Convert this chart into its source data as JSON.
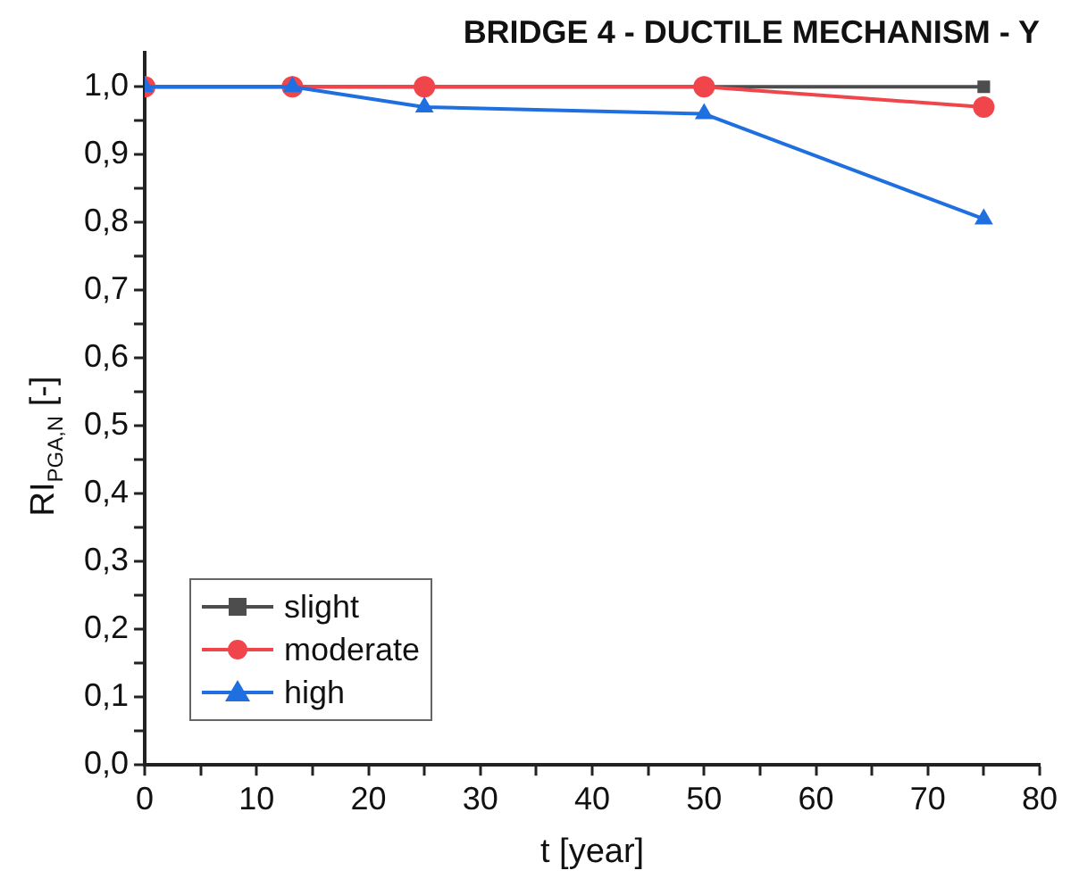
{
  "chart_data": {
    "type": "line",
    "title": "BRIDGE 4 - DUCTILE MECHANISM - Y",
    "xlabel": "t [year]",
    "ylabel": "RI$_{PGA,N}$ [-]",
    "x": [
      0,
      13.2,
      25,
      50,
      75
    ],
    "series": [
      {
        "name": "slight",
        "color": "#4d4d4d",
        "marker": "square",
        "values": [
          1,
          1,
          1,
          1,
          1
        ]
      },
      {
        "name": "moderate",
        "color": "#f0464b",
        "marker": "circle",
        "values": [
          1,
          1,
          1,
          1,
          0.97
        ]
      },
      {
        "name": "high",
        "color": "#1f6fe0",
        "marker": "triangle",
        "values": [
          1,
          1,
          0.97,
          0.96,
          0.805
        ]
      }
    ],
    "xlim": [
      0,
      80
    ],
    "xticks": [
      0,
      {
        "value": 5,
        "label": null
      },
      10,
      {
        "value": 15,
        "label": null
      },
      20,
      {
        "value": 25,
        "label": null
      },
      30,
      {
        "value": 35,
        "label": null
      },
      40,
      {
        "value": 45,
        "label": null
      },
      50,
      {
        "value": 55,
        "label": null
      },
      60,
      {
        "value": 65,
        "label": null
      },
      70,
      {
        "value": 75,
        "label": null
      },
      80
    ],
    "ylim": [
      0,
      1.05
    ],
    "yticks": [
      {
        "value": 0,
        "label": "0,0"
      },
      {
        "value": 0.05,
        "label": null
      },
      {
        "value": 0.1,
        "label": "0,1"
      },
      {
        "value": 0.15,
        "label": null
      },
      {
        "value": 0.2,
        "label": "0,2"
      },
      {
        "value": 0.25,
        "label": null
      },
      {
        "value": 0.3,
        "label": "0,3"
      },
      {
        "value": 0.35,
        "label": null
      },
      {
        "value": 0.4,
        "label": "0,4"
      },
      {
        "value": 0.45,
        "label": null
      },
      {
        "value": 0.5,
        "label": "0,5"
      },
      {
        "value": 0.55,
        "label": null
      },
      {
        "value": 0.6,
        "label": "0,6"
      },
      {
        "value": 0.65,
        "label": null
      },
      {
        "value": 0.7,
        "label": "0,7"
      },
      {
        "value": 0.75,
        "label": null
      },
      {
        "value": 0.8,
        "label": "0,8"
      },
      {
        "value": 0.85,
        "label": null
      },
      {
        "value": 0.9,
        "label": "0,9"
      },
      {
        "value": 0.95,
        "label": null
      },
      {
        "value": 1,
        "label": "1,0"
      }
    ],
    "grid": false,
    "legend": "bottom left",
    "line_style": "solid"
  }
}
